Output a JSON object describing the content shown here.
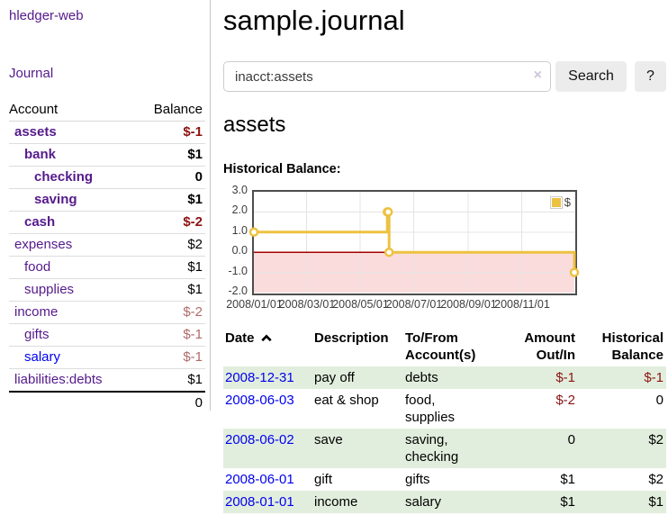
{
  "sidebar": {
    "brand": "hledger-web",
    "journal_label": "Journal",
    "accounts_table": {
      "headers": {
        "account": "Account",
        "balance": "Balance"
      },
      "rows": [
        {
          "name": "assets",
          "balance": "$-1",
          "depth": 0,
          "bold": true,
          "balance_tone": "negative-strong",
          "link_tone": "purple"
        },
        {
          "name": "bank",
          "balance": "$1",
          "depth": 1,
          "bold": true,
          "balance_tone": "normal",
          "link_tone": "purple"
        },
        {
          "name": "checking",
          "balance": "0",
          "depth": 2,
          "bold": true,
          "balance_tone": "normal",
          "link_tone": "purple"
        },
        {
          "name": "saving",
          "balance": "$1",
          "depth": 2,
          "bold": true,
          "balance_tone": "normal",
          "link_tone": "purple"
        },
        {
          "name": "cash",
          "balance": "$-2",
          "depth": 1,
          "bold": true,
          "balance_tone": "negative-strong",
          "link_tone": "purple"
        },
        {
          "name": "expenses",
          "balance": "$2",
          "depth": 0,
          "bold": false,
          "balance_tone": "normal",
          "link_tone": "purple"
        },
        {
          "name": "food",
          "balance": "$1",
          "depth": 1,
          "bold": false,
          "balance_tone": "normal",
          "link_tone": "purple"
        },
        {
          "name": "supplies",
          "balance": "$1",
          "depth": 1,
          "bold": false,
          "balance_tone": "normal",
          "link_tone": "purple"
        },
        {
          "name": "income",
          "balance": "$-2",
          "depth": 0,
          "bold": false,
          "balance_tone": "negative-soft",
          "link_tone": "purple"
        },
        {
          "name": "gifts",
          "balance": "$-1",
          "depth": 1,
          "bold": false,
          "balance_tone": "negative-soft",
          "link_tone": "purple"
        },
        {
          "name": "salary",
          "balance": "$-1",
          "depth": 1,
          "bold": false,
          "balance_tone": "negative-soft",
          "link_tone": "blue"
        },
        {
          "name": "liabilities:debts",
          "balance": "$1",
          "depth": 0,
          "bold": false,
          "balance_tone": "normal",
          "link_tone": "purple"
        }
      ],
      "total": "0"
    }
  },
  "header": {
    "title": "sample.journal"
  },
  "search": {
    "value": "inacct:assets",
    "clear_icon": "×",
    "button_label": "Search",
    "help_label": "?"
  },
  "account_page": {
    "title": "assets"
  },
  "chart_data": {
    "type": "line",
    "step": true,
    "title": "Historical Balance:",
    "series": [
      {
        "name": "$",
        "color": "#edc240",
        "points": [
          [
            "2008-01-01",
            1
          ],
          [
            "2008-06-01",
            2
          ],
          [
            "2008-06-02",
            2
          ],
          [
            "2008-06-03",
            0
          ],
          [
            "2008-12-31",
            -1
          ]
        ]
      }
    ],
    "xrange": [
      "2008-01-01",
      "2008-12-31"
    ],
    "ylim": [
      -2,
      3
    ],
    "ytick_labels": [
      "3.0",
      "2.0",
      "1.0",
      "0.0",
      "-1.0",
      "-2.0"
    ],
    "xticks": [
      "2008/01/01",
      "2008/03/01",
      "2008/05/01",
      "2008/07/01",
      "2008/09/01",
      "2008/11/01"
    ],
    "legend": {
      "label": "$",
      "position": "top-right"
    },
    "grid": true,
    "negative_region_color": "#fbdcdc",
    "zero_line_color": "#a40000",
    "gridline_color": "#e4e4e4"
  },
  "register": {
    "headers": {
      "date": "Date",
      "description": "Description",
      "accounts": "To/From Account(s)",
      "amount": "Amount Out/In",
      "balance": "Historical Balance"
    },
    "sort": {
      "column": "date",
      "direction": "ascending"
    },
    "rows": [
      {
        "date": "2008-12-31",
        "description": "pay off",
        "accounts": "debts",
        "amount": "$-1",
        "balance": "$-1"
      },
      {
        "date": "2008-06-03",
        "description": "eat & shop",
        "accounts": "food, supplies",
        "amount": "$-2",
        "balance": "0"
      },
      {
        "date": "2008-06-02",
        "description": "save",
        "accounts": "saving, checking",
        "amount": "0",
        "balance": "$2"
      },
      {
        "date": "2008-06-01",
        "description": "gift",
        "accounts": "gifts",
        "amount": "$1",
        "balance": "$2"
      },
      {
        "date": "2008-01-01",
        "description": "income",
        "accounts": "salary",
        "amount": "$1",
        "balance": "$1"
      }
    ]
  },
  "colors": {
    "link_purple": "#551a8b",
    "link_blue": "#0000ee",
    "negative_strong": "#8b1313",
    "negative_soft": "#b06a6a",
    "row_stripe_green": "#e2eedd",
    "chart_line_gold": "#edc240",
    "button_gray": "#ececec"
  }
}
